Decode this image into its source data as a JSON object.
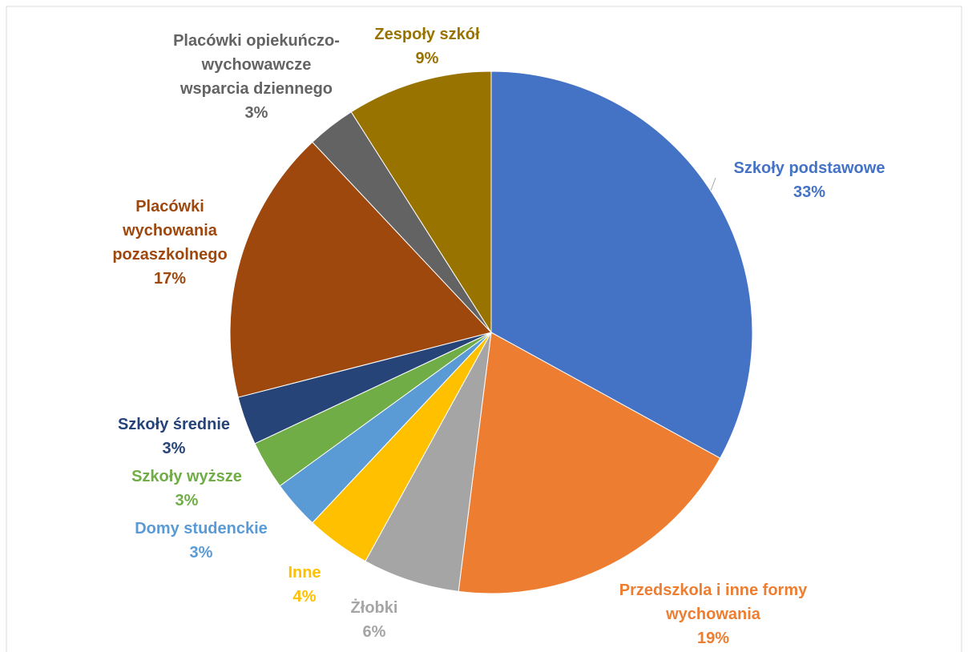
{
  "chart_data": {
    "type": "pie",
    "categories": [
      "Szkoły podstawowe",
      "Przedszkola i inne formy wychowania",
      "Żłobki",
      "Inne",
      "Domy studenckie",
      "Szkoły wyższe",
      "Szkoły średnie",
      "Placówki wychowania pozaszkolnego",
      "Placówki opiekuńczo-wychowawcze wsparcia dziennego",
      "Zespoły szkół"
    ],
    "values": [
      33,
      19,
      6,
      4,
      3,
      3,
      3,
      17,
      3,
      9
    ],
    "value_labels": [
      "33%",
      "19%",
      "6%",
      "4%",
      "3%",
      "3%",
      "3%",
      "17%",
      "3%",
      "9%"
    ],
    "colors": [
      "#4472c4",
      "#ed7d31",
      "#a5a5a5",
      "#ffc000",
      "#5b9bd5",
      "#70ad47",
      "#264478",
      "#9e480e",
      "#636363",
      "#997300"
    ]
  }
}
